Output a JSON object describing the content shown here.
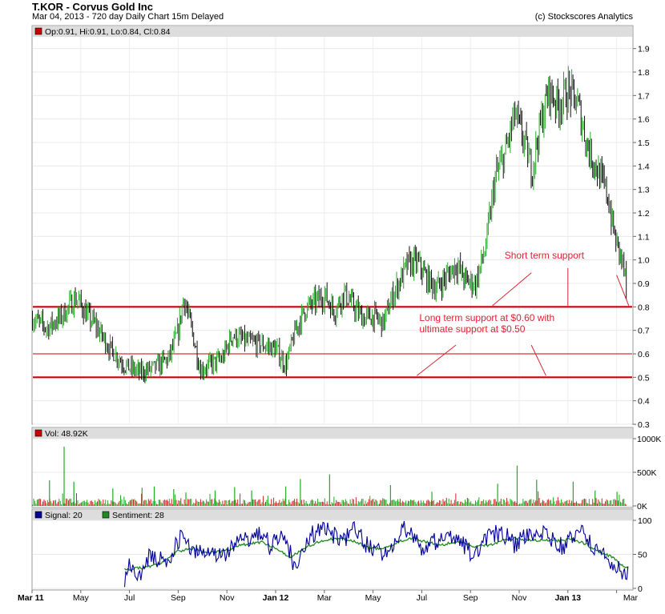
{
  "header": {
    "title": "T.KOR - Corvus Gold Inc",
    "subtitle": "Mar 04, 2013 - 720 day  Daily Chart 15m Delayed",
    "credit": "(c) Stockscores Analytics"
  },
  "colors": {
    "up": "#22aa22",
    "down": "#111111",
    "support": "#cc0000",
    "annotation": "#dd2233",
    "volume": "#cc2222",
    "signal": "#000099",
    "sentiment": "#228822",
    "legend_bg": "#dddddd"
  },
  "chart_data": [
    {
      "type": "candlestick",
      "legend_text": "Op:0.91, Hi:0.91, Lo:0.84, Cl:0.84",
      "ohlc_last": {
        "open": 0.91,
        "high": 0.91,
        "low": 0.84,
        "close": 0.84
      },
      "ylim": [
        0.3,
        1.95
      ],
      "y_ticks": [
        "0.3",
        "0.4",
        "0.5",
        "0.6",
        "0.7",
        "0.8",
        "0.9",
        "1.0",
        "1.1",
        "1.2",
        "1.3",
        "1.4",
        "1.5",
        "1.6",
        "1.7",
        "1.8",
        "1.9"
      ],
      "x_tick_labels": [
        "Mar 11",
        "May",
        "Jul",
        "Sep",
        "Nov",
        "Jan 12",
        "Mar",
        "May",
        "Jul",
        "Sep",
        "Nov",
        "Jan 13",
        "Mar"
      ],
      "x_months": [
        0,
        2,
        4,
        6,
        8,
        10,
        12,
        14,
        16,
        18,
        20,
        22,
        24
      ],
      "anchors": [
        [
          0,
          0.75
        ],
        [
          0.6,
          0.71
        ],
        [
          1.2,
          0.76
        ],
        [
          1.8,
          0.84
        ],
        [
          2.2,
          0.77
        ],
        [
          2.6,
          0.72
        ],
        [
          3.2,
          0.62
        ],
        [
          3.8,
          0.55
        ],
        [
          4.4,
          0.52
        ],
        [
          5.0,
          0.54
        ],
        [
          5.6,
          0.58
        ],
        [
          6.0,
          0.7
        ],
        [
          6.2,
          0.84
        ],
        [
          6.5,
          0.72
        ],
        [
          6.9,
          0.53
        ],
        [
          7.4,
          0.56
        ],
        [
          7.8,
          0.58
        ],
        [
          8.2,
          0.68
        ],
        [
          8.8,
          0.65
        ],
        [
          9.4,
          0.64
        ],
        [
          10.0,
          0.62
        ],
        [
          10.4,
          0.55
        ],
        [
          10.8,
          0.7
        ],
        [
          11.2,
          0.79
        ],
        [
          11.6,
          0.82
        ],
        [
          12.0,
          0.85
        ],
        [
          12.4,
          0.78
        ],
        [
          12.8,
          0.86
        ],
        [
          13.2,
          0.8
        ],
        [
          13.6,
          0.75
        ],
        [
          14.0,
          0.76
        ],
        [
          14.4,
          0.73
        ],
        [
          14.8,
          0.85
        ],
        [
          15.4,
          0.98
        ],
        [
          15.8,
          0.99
        ],
        [
          16.2,
          0.92
        ],
        [
          16.6,
          0.88
        ],
        [
          17.0,
          0.93
        ],
        [
          17.4,
          0.98
        ],
        [
          17.8,
          0.91
        ],
        [
          18.2,
          0.9
        ],
        [
          18.6,
          1.05
        ],
        [
          19.0,
          1.35
        ],
        [
          19.4,
          1.45
        ],
        [
          19.8,
          1.62
        ],
        [
          20.2,
          1.5
        ],
        [
          20.5,
          1.38
        ],
        [
          20.8,
          1.55
        ],
        [
          21.2,
          1.72
        ],
        [
          21.6,
          1.66
        ],
        [
          22.0,
          1.72
        ],
        [
          22.4,
          1.66
        ],
        [
          22.8,
          1.48
        ],
        [
          23.2,
          1.38
        ],
        [
          23.6,
          1.28
        ],
        [
          23.9,
          1.1
        ],
        [
          24.2,
          1.0
        ],
        [
          24.45,
          0.88
        ]
      ],
      "support_lines": [
        {
          "value": 0.8,
          "weight": "heavy"
        },
        {
          "value": 0.6,
          "weight": "light"
        },
        {
          "value": 0.5,
          "weight": "heavy"
        }
      ],
      "annotations": [
        {
          "lines": [
            "Short term support"
          ],
          "month": 19.4,
          "value": 1.005
        },
        {
          "lines": [
            "Long term support at $0.60 with",
            "ultimate support at $0.50"
          ],
          "month": 15.9,
          "value": 0.74
        }
      ],
      "arrows": [
        {
          "from": [
            20.5,
            0.945
          ],
          "to": [
            18.9,
            0.805
          ]
        },
        {
          "from": [
            22.0,
            0.965
          ],
          "to": [
            22.0,
            0.805
          ]
        },
        {
          "from": [
            24.0,
            0.935
          ],
          "to": [
            24.5,
            0.805
          ]
        },
        {
          "from": [
            17.4,
            0.637
          ],
          "to": [
            15.8,
            0.507
          ]
        },
        {
          "from": [
            20.5,
            0.637
          ],
          "to": [
            21.1,
            0.507
          ]
        }
      ]
    },
    {
      "type": "bar",
      "legend_text": "Vol: 48.92K",
      "ylim": [
        0,
        1000
      ],
      "y_ticks": [
        "1000K",
        "500K",
        "0K"
      ],
      "y_tick_values": [
        1000,
        500,
        0
      ],
      "spikes": [
        [
          1.3,
          880
        ],
        [
          0.7,
          380
        ],
        [
          1.7,
          360
        ],
        [
          3.3,
          260
        ],
        [
          4.5,
          270
        ],
        [
          5.0,
          290
        ],
        [
          5.8,
          250
        ],
        [
          6.3,
          200
        ],
        [
          7.5,
          230
        ],
        [
          8.3,
          280
        ],
        [
          9.0,
          230
        ],
        [
          10.4,
          290
        ],
        [
          11.0,
          400
        ],
        [
          12.2,
          470
        ],
        [
          14.7,
          310
        ],
        [
          16.4,
          210
        ],
        [
          19.1,
          330
        ],
        [
          19.9,
          600
        ],
        [
          20.7,
          390
        ],
        [
          22.2,
          360
        ],
        [
          23.1,
          230
        ],
        [
          24.0,
          210
        ]
      ],
      "base_range": [
        20,
        110
      ]
    },
    {
      "type": "line",
      "ylim": [
        0,
        100
      ],
      "y_ticks": [
        "100",
        "50",
        "0"
      ],
      "y_tick_values": [
        100,
        50,
        0
      ],
      "series": [
        {
          "name": "Signal: 20",
          "color": "#000099"
        },
        {
          "name": "Sentiment: 28",
          "color": "#228822"
        }
      ],
      "start_month": 3.8,
      "signal_anchors": [
        [
          3.8,
          5
        ],
        [
          4.0,
          40
        ],
        [
          4.4,
          20
        ],
        [
          4.8,
          45
        ],
        [
          5.4,
          40
        ],
        [
          5.8,
          55
        ],
        [
          6.2,
          80
        ],
        [
          6.6,
          55
        ],
        [
          7.2,
          60
        ],
        [
          7.8,
          48
        ],
        [
          8.4,
          65
        ],
        [
          8.9,
          70
        ],
        [
          9.4,
          85
        ],
        [
          9.8,
          60
        ],
        [
          10.3,
          85
        ],
        [
          10.8,
          30
        ],
        [
          11.3,
          75
        ],
        [
          11.8,
          88
        ],
        [
          12.3,
          80
        ],
        [
          12.8,
          70
        ],
        [
          13.3,
          88
        ],
        [
          13.8,
          60
        ],
        [
          14.3,
          52
        ],
        [
          14.8,
          65
        ],
        [
          15.3,
          90
        ],
        [
          15.7,
          70
        ],
        [
          16.2,
          55
        ],
        [
          16.7,
          75
        ],
        [
          17.3,
          80
        ],
        [
          17.8,
          60
        ],
        [
          18.2,
          45
        ],
        [
          18.8,
          80
        ],
        [
          19.3,
          82
        ],
        [
          19.8,
          65
        ],
        [
          20.3,
          75
        ],
        [
          20.8,
          88
        ],
        [
          21.3,
          70
        ],
        [
          21.8,
          60
        ],
        [
          22.2,
          80
        ],
        [
          22.6,
          80
        ],
        [
          23.0,
          60
        ],
        [
          23.5,
          50
        ],
        [
          24.0,
          30
        ],
        [
          24.5,
          20
        ]
      ],
      "sentiment_anchors": [
        [
          3.8,
          28
        ],
        [
          4.5,
          30
        ],
        [
          5.2,
          35
        ],
        [
          6.0,
          55
        ],
        [
          6.6,
          58
        ],
        [
          7.2,
          52
        ],
        [
          7.9,
          55
        ],
        [
          8.6,
          64
        ],
        [
          9.4,
          68
        ],
        [
          10.0,
          60
        ],
        [
          10.6,
          45
        ],
        [
          11.2,
          60
        ],
        [
          11.9,
          70
        ],
        [
          12.6,
          74
        ],
        [
          13.2,
          70
        ],
        [
          13.8,
          60
        ],
        [
          14.4,
          58
        ],
        [
          15.0,
          68
        ],
        [
          15.6,
          74
        ],
        [
          16.2,
          68
        ],
        [
          16.8,
          63
        ],
        [
          17.5,
          70
        ],
        [
          18.1,
          62
        ],
        [
          18.7,
          63
        ],
        [
          19.3,
          70
        ],
        [
          19.9,
          74
        ],
        [
          20.5,
          70
        ],
        [
          21.0,
          72
        ],
        [
          21.6,
          70
        ],
        [
          22.2,
          72
        ],
        [
          22.7,
          66
        ],
        [
          23.2,
          55
        ],
        [
          23.8,
          46
        ],
        [
          24.5,
          28
        ]
      ]
    }
  ]
}
